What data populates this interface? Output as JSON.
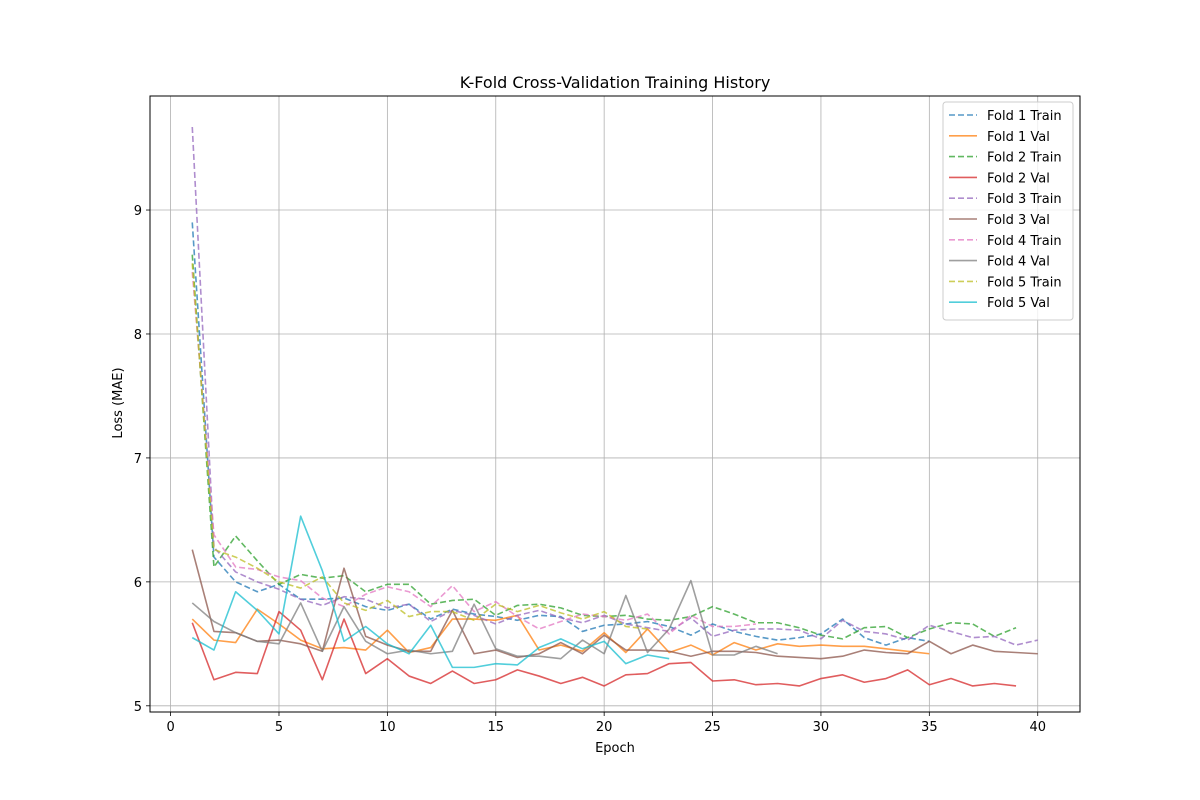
{
  "chart_data": {
    "type": "line",
    "title": "K-Fold Cross-Validation Training History",
    "xlabel": "Epoch",
    "ylabel": "Loss (MAE)",
    "xlim": [
      -0.95,
      41.95
    ],
    "ylim": [
      4.95,
      9.92
    ],
    "xticks": [
      0,
      5,
      10,
      15,
      20,
      25,
      30,
      35,
      40
    ],
    "yticks": [
      5,
      6,
      7,
      8,
      9
    ],
    "grid": true,
    "legend_position": "top-right",
    "series": [
      {
        "name": "Fold 1 Train",
        "color": "#1f77b4",
        "dash": true,
        "values": [
          8.9,
          6.2,
          6.0,
          5.92,
          5.98,
          5.86,
          5.86,
          5.87,
          5.8,
          5.77,
          5.82,
          5.7,
          5.78,
          5.74,
          5.72,
          5.69,
          5.73,
          5.72,
          5.6,
          5.65,
          5.66,
          5.68,
          5.64,
          5.57,
          5.66,
          5.6,
          5.56,
          5.53,
          5.55,
          5.58,
          5.7,
          5.55,
          5.49,
          5.55,
          5.52
        ]
      },
      {
        "name": "Fold 1 Val",
        "color": "#ff7f0e",
        "dash": false,
        "values": [
          5.7,
          5.53,
          5.51,
          5.78,
          5.66,
          5.53,
          5.46,
          5.47,
          5.45,
          5.61,
          5.43,
          5.47,
          5.7,
          5.7,
          5.69,
          5.73,
          5.45,
          5.49,
          5.44,
          5.59,
          5.43,
          5.62,
          5.43,
          5.49,
          5.41,
          5.51,
          5.45,
          5.5,
          5.48,
          5.49,
          5.48,
          5.48,
          5.46,
          5.44,
          5.42
        ]
      },
      {
        "name": "Fold 2 Train",
        "color": "#2ca02c",
        "dash": true,
        "values": [
          8.64,
          6.12,
          6.37,
          6.17,
          5.98,
          6.06,
          6.03,
          6.05,
          5.92,
          5.98,
          5.98,
          5.82,
          5.85,
          5.86,
          5.73,
          5.81,
          5.82,
          5.79,
          5.73,
          5.72,
          5.73,
          5.7,
          5.69,
          5.72,
          5.8,
          5.74,
          5.67,
          5.67,
          5.63,
          5.57,
          5.54,
          5.63,
          5.64,
          5.55,
          5.62,
          5.67,
          5.66,
          5.56,
          5.63
        ]
      },
      {
        "name": "Fold 2 Val",
        "color": "#d62728",
        "dash": false,
        "values": [
          5.67,
          5.21,
          5.27,
          5.26,
          5.76,
          5.61,
          5.21,
          5.7,
          5.26,
          5.38,
          5.24,
          5.18,
          5.28,
          5.18,
          5.21,
          5.29,
          5.24,
          5.18,
          5.23,
          5.16,
          5.25,
          5.26,
          5.34,
          5.35,
          5.2,
          5.21,
          5.17,
          5.18,
          5.16,
          5.22,
          5.25,
          5.19,
          5.22,
          5.29,
          5.17,
          5.22,
          5.16,
          5.18,
          5.16
        ]
      },
      {
        "name": "Fold 3 Train",
        "color": "#9467bd",
        "dash": true,
        "values": [
          9.67,
          6.28,
          6.08,
          6.0,
          5.94,
          5.86,
          5.81,
          5.88,
          5.86,
          5.79,
          5.82,
          5.68,
          5.77,
          5.73,
          5.66,
          5.73,
          5.77,
          5.71,
          5.67,
          5.73,
          5.66,
          5.63,
          5.6,
          5.71,
          5.56,
          5.61,
          5.62,
          5.62,
          5.61,
          5.54,
          5.69,
          5.6,
          5.58,
          5.53,
          5.65,
          5.6,
          5.55,
          5.56,
          5.49,
          5.53
        ]
      },
      {
        "name": "Fold 3 Val",
        "color": "#8c564b",
        "dash": false,
        "values": [
          6.26,
          5.6,
          5.59,
          5.52,
          5.53,
          5.5,
          5.44,
          6.11,
          5.56,
          5.49,
          5.44,
          5.44,
          5.77,
          5.42,
          5.45,
          5.39,
          5.42,
          5.51,
          5.42,
          5.57,
          5.45,
          5.45,
          5.44,
          5.4,
          5.44,
          5.44,
          5.43,
          5.4,
          5.39,
          5.38,
          5.4,
          5.45,
          5.43,
          5.42,
          5.52,
          5.42,
          5.49,
          5.44,
          5.43,
          5.42
        ]
      },
      {
        "name": "Fold 4 Train",
        "color": "#e377c2",
        "dash": true,
        "values": [
          8.5,
          6.38,
          6.12,
          6.1,
          6.04,
          6.01,
          5.87,
          5.8,
          5.9,
          5.96,
          5.92,
          5.8,
          5.97,
          5.76,
          5.84,
          5.72,
          5.62,
          5.68,
          5.74,
          5.72,
          5.69,
          5.74,
          5.58,
          5.73,
          5.64,
          5.64,
          5.66
        ]
      },
      {
        "name": "Fold 4 Val",
        "color": "#7f7f7f",
        "dash": false,
        "values": [
          5.83,
          5.68,
          5.59,
          5.52,
          5.5,
          5.83,
          5.44,
          5.8,
          5.52,
          5.42,
          5.45,
          5.42,
          5.44,
          5.82,
          5.46,
          5.4,
          5.4,
          5.38,
          5.53,
          5.42,
          5.89,
          5.43,
          5.62,
          6.01,
          5.41,
          5.41,
          5.48,
          5.42
        ]
      },
      {
        "name": "Fold 5 Train",
        "color": "#bcbd22",
        "dash": true,
        "values": [
          8.57,
          6.26,
          6.2,
          6.11,
          6.0,
          5.95,
          6.04,
          5.83,
          5.77,
          5.85,
          5.72,
          5.76,
          5.76,
          5.69,
          5.82,
          5.76,
          5.81,
          5.75,
          5.7,
          5.76,
          5.64,
          5.62
        ]
      },
      {
        "name": "Fold 5 Val",
        "color": "#17becf",
        "dash": false,
        "values": [
          5.55,
          5.45,
          5.92,
          5.77,
          5.58,
          6.53,
          6.09,
          5.52,
          5.64,
          5.5,
          5.42,
          5.65,
          5.31,
          5.31,
          5.34,
          5.33,
          5.47,
          5.54,
          5.46,
          5.52,
          5.34,
          5.41,
          5.38
        ]
      }
    ]
  }
}
